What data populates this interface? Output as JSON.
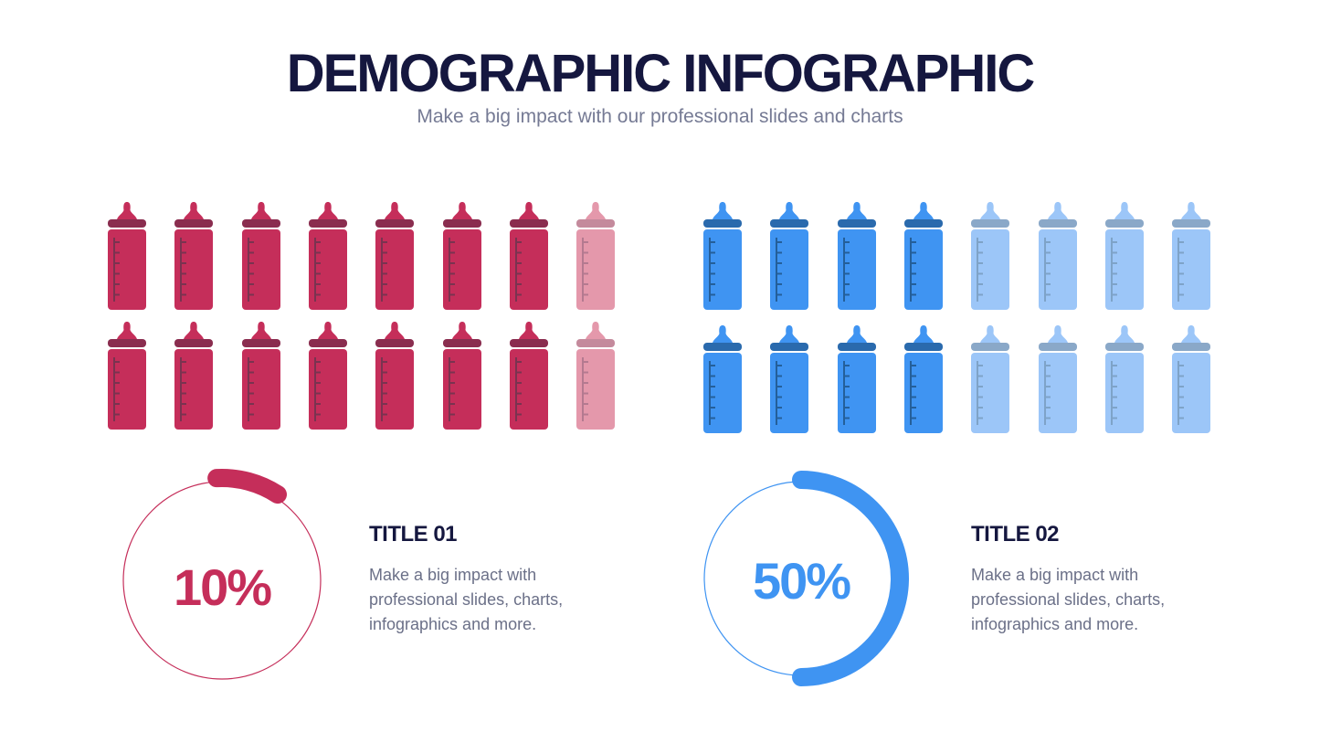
{
  "header": {
    "title": "DEMOGRAPHIC INFOGRAPHIC",
    "subtitle": "Make a big impact with our professional slides and charts"
  },
  "colors": {
    "title": "#15173f",
    "subtitle": "#757a94",
    "text": "#6b7088",
    "pink": "#c52e5a",
    "pink_light": "#e498ab",
    "pink_cap": "#8a2d4f",
    "pink_cap_light": "#c48a9c",
    "pink_marks": "#7a3350",
    "pink_marks_light": "#b47a90",
    "blue": "#3f94f2",
    "blue_light": "#9cc6f8",
    "blue_cap": "#2a6aad",
    "blue_cap_light": "#8aa8c8",
    "blue_marks": "#245f9a",
    "blue_marks_light": "#7ea3c8"
  },
  "groups": [
    {
      "icon": "baby-bottle-icon",
      "rows": 2,
      "cols": 8,
      "full_per_row": 7,
      "color": "pink"
    },
    {
      "icon": "baby-bottle-icon",
      "rows": 2,
      "cols": 8,
      "full_per_row": 4,
      "color": "blue"
    }
  ],
  "cards": [
    {
      "percent_label": "10%",
      "percent": 10,
      "title": "TITLE 01",
      "text_lines": [
        "Make a big impact with",
        "professional slides, charts,",
        "infographics and more."
      ],
      "color": "pink"
    },
    {
      "percent_label": "50%",
      "percent": 50,
      "title": "TITLE 02",
      "text_lines": [
        "Make a big impact with",
        "professional slides, charts,",
        "infographics and more."
      ],
      "color": "blue"
    }
  ]
}
